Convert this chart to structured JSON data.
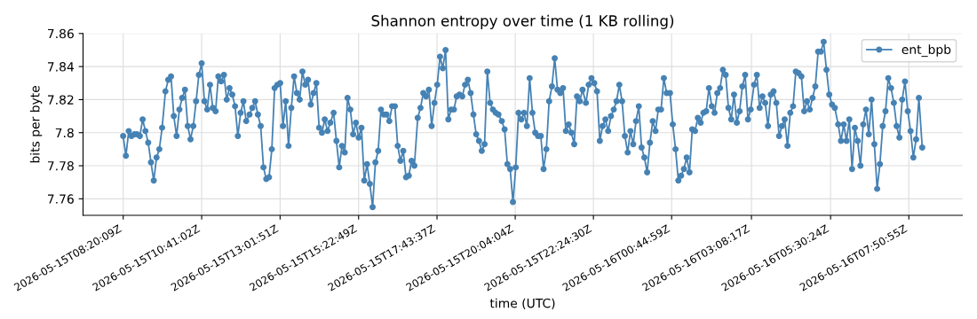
{
  "chart_data": {
    "type": "line",
    "title": "Shannon entropy over time (1 KB rolling)",
    "xlabel": "time (UTC)",
    "ylabel": "bits per byte",
    "x": [
      "2026-05-15T08:20",
      "2026-05-15T08:25",
      "2026-05-15T08:30",
      "2026-05-15T08:35",
      "2026-05-15T08:40",
      "2026-05-15T08:45",
      "2026-05-15T08:50",
      "2026-05-15T08:55",
      "2026-05-15T09:00",
      "2026-05-15T09:05",
      "2026-05-15T09:10",
      "2026-05-15T09:15",
      "2026-05-15T09:20",
      "2026-05-15T09:25",
      "2026-05-15T09:30",
      "2026-05-15T09:36",
      "2026-05-15T09:41",
      "2026-05-15T09:46",
      "2026-05-15T09:51",
      "2026-05-15T09:56",
      "2026-05-15T10:01",
      "2026-05-15T10:06",
      "2026-05-15T10:11",
      "2026-05-15T10:16",
      "2026-05-15T10:21",
      "2026-05-15T10:26",
      "2026-05-15T10:31",
      "2026-05-15T10:36",
      "2026-05-15T10:41",
      "2026-05-15T10:46",
      "2026-05-15T10:51",
      "2026-05-15T10:56",
      "2026-05-15T11:01",
      "2026-05-15T11:06",
      "2026-05-15T11:11",
      "2026-05-15T11:16",
      "2026-05-15T11:21",
      "2026-05-15T11:26",
      "2026-05-15T11:31",
      "2026-05-15T11:36",
      "2026-05-15T11:41",
      "2026-05-15T11:46",
      "2026-05-15T11:51",
      "2026-05-15T11:56",
      "2026-05-15T12:01",
      "2026-05-15T12:07",
      "2026-05-15T12:12",
      "2026-05-15T12:17",
      "2026-05-15T12:22",
      "2026-05-15T12:27",
      "2026-05-15T12:32",
      "2026-05-15T12:37",
      "2026-05-15T12:42",
      "2026-05-15T12:47",
      "2026-05-15T12:52",
      "2026-05-15T12:57",
      "2026-05-15T13:02",
      "2026-05-15T13:07",
      "2026-05-15T13:12",
      "2026-05-15T13:17",
      "2026-05-15T13:22",
      "2026-05-15T13:27",
      "2026-05-15T13:32",
      "2026-05-15T13:37",
      "2026-05-15T13:42",
      "2026-05-15T13:47",
      "2026-05-15T13:52",
      "2026-05-15T13:57",
      "2026-05-15T14:02",
      "2026-05-15T14:07",
      "2026-05-15T14:12",
      "2026-05-15T14:17",
      "2026-05-15T14:22",
      "2026-05-15T14:27",
      "2026-05-15T14:32",
      "2026-05-15T14:38",
      "2026-05-15T14:43",
      "2026-05-15T14:48",
      "2026-05-15T14:53",
      "2026-05-15T14:58",
      "2026-05-15T15:03",
      "2026-05-15T15:08",
      "2026-05-15T15:13",
      "2026-05-15T15:18",
      "2026-05-15T15:23",
      "2026-05-15T15:28",
      "2026-05-15T15:33",
      "2026-05-15T15:38",
      "2026-05-15T15:43",
      "2026-05-15T15:48",
      "2026-05-15T15:53",
      "2026-05-15T15:58",
      "2026-05-15T16:03",
      "2026-05-15T16:08",
      "2026-05-15T16:13",
      "2026-05-15T16:18",
      "2026-05-15T16:23",
      "2026-05-15T16:28",
      "2026-05-15T16:33",
      "2026-05-15T16:38",
      "2026-05-15T16:43",
      "2026-05-15T16:48",
      "2026-05-15T16:53",
      "2026-05-15T16:58",
      "2026-05-15T17:03",
      "2026-05-15T17:09",
      "2026-05-15T17:14",
      "2026-05-15T17:19",
      "2026-05-15T17:24",
      "2026-05-15T17:29",
      "2026-05-15T17:34",
      "2026-05-15T17:39",
      "2026-05-15T17:44",
      "2026-05-15T17:49",
      "2026-05-15T17:54",
      "2026-05-15T17:59",
      "2026-05-15T18:04",
      "2026-05-15T18:09",
      "2026-05-15T18:14",
      "2026-05-15T18:19",
      "2026-05-15T18:24",
      "2026-05-15T18:29",
      "2026-05-15T18:34",
      "2026-05-15T18:39",
      "2026-05-15T18:44",
      "2026-05-15T18:49",
      "2026-05-15T18:54",
      "2026-05-15T18:59",
      "2026-05-15T19:04",
      "2026-05-15T19:09",
      "2026-05-15T19:14",
      "2026-05-15T19:19",
      "2026-05-15T19:24",
      "2026-05-15T19:29",
      "2026-05-15T19:34",
      "2026-05-15T19:40",
      "2026-05-15T19:45",
      "2026-05-15T19:50",
      "2026-05-15T19:55",
      "2026-05-15T20:00",
      "2026-05-15T20:05",
      "2026-05-15T20:10",
      "2026-05-15T20:15",
      "2026-05-15T20:20",
      "2026-05-15T20:25",
      "2026-05-15T20:30",
      "2026-05-15T20:35",
      "2026-05-15T20:40",
      "2026-05-15T20:45",
      "2026-05-15T20:50",
      "2026-05-15T20:55",
      "2026-05-15T21:00",
      "2026-05-15T21:05",
      "2026-05-15T21:10",
      "2026-05-15T21:15",
      "2026-05-15T21:20",
      "2026-05-15T21:25",
      "2026-05-15T21:30",
      "2026-05-15T21:35",
      "2026-05-15T21:40",
      "2026-05-15T21:45",
      "2026-05-15T21:50",
      "2026-05-15T21:55",
      "2026-05-15T22:00",
      "2026-05-15T22:05",
      "2026-05-15T22:11",
      "2026-05-15T22:16",
      "2026-05-15T22:21",
      "2026-05-15T22:26",
      "2026-05-15T22:31",
      "2026-05-15T22:36",
      "2026-05-15T22:41",
      "2026-05-15T22:46",
      "2026-05-15T22:51",
      "2026-05-15T22:56",
      "2026-05-15T23:01",
      "2026-05-15T23:06",
      "2026-05-15T23:11",
      "2026-05-15T23:16",
      "2026-05-15T23:21",
      "2026-05-15T23:26",
      "2026-05-15T23:31",
      "2026-05-15T23:36",
      "2026-05-15T23:41",
      "2026-05-15T23:46",
      "2026-05-15T23:51",
      "2026-05-15T23:56",
      "2026-05-16T00:01",
      "2026-05-16T00:06",
      "2026-05-16T00:11",
      "2026-05-16T00:16",
      "2026-05-16T00:21",
      "2026-05-16T00:26",
      "2026-05-16T00:31",
      "2026-05-16T00:36",
      "2026-05-16T00:42",
      "2026-05-16T00:47",
      "2026-05-16T00:52",
      "2026-05-16T00:57",
      "2026-05-16T01:02",
      "2026-05-16T01:07",
      "2026-05-16T01:12",
      "2026-05-16T01:17",
      "2026-05-16T01:22",
      "2026-05-16T01:27",
      "2026-05-16T01:32",
      "2026-05-16T01:37",
      "2026-05-16T01:42",
      "2026-05-16T01:47",
      "2026-05-16T01:52",
      "2026-05-16T01:57",
      "2026-05-16T02:02",
      "2026-05-16T02:07",
      "2026-05-16T02:12",
      "2026-05-16T02:17",
      "2026-05-16T02:22",
      "2026-05-16T02:27",
      "2026-05-16T02:32",
      "2026-05-16T02:37",
      "2026-05-16T02:42",
      "2026-05-16T02:47",
      "2026-05-16T02:52",
      "2026-05-16T02:57",
      "2026-05-16T03:02",
      "2026-05-16T03:07",
      "2026-05-16T03:13",
      "2026-05-16T03:18",
      "2026-05-16T03:23",
      "2026-05-16T03:28",
      "2026-05-16T03:33",
      "2026-05-16T03:38",
      "2026-05-16T03:43",
      "2026-05-16T03:48",
      "2026-05-16T03:53",
      "2026-05-16T03:58",
      "2026-05-16T04:03",
      "2026-05-16T04:08",
      "2026-05-16T04:13",
      "2026-05-16T04:18",
      "2026-05-16T04:23",
      "2026-05-16T04:28",
      "2026-05-16T04:33",
      "2026-05-16T04:38",
      "2026-05-16T04:43",
      "2026-05-16T04:48",
      "2026-05-16T04:53",
      "2026-05-16T04:58",
      "2026-05-16T05:03",
      "2026-05-16T05:08",
      "2026-05-16T05:13",
      "2026-05-16T05:18",
      "2026-05-16T05:23",
      "2026-05-16T05:28",
      "2026-05-16T05:33",
      "2026-05-16T05:38",
      "2026-05-16T05:44",
      "2026-05-16T05:49",
      "2026-05-16T05:54",
      "2026-05-16T05:59",
      "2026-05-16T06:04",
      "2026-05-16T06:09",
      "2026-05-16T06:14",
      "2026-05-16T06:19",
      "2026-05-16T06:24",
      "2026-05-16T06:29",
      "2026-05-16T06:34",
      "2026-05-16T06:39",
      "2026-05-16T06:44",
      "2026-05-16T06:49",
      "2026-05-16T06:54",
      "2026-05-16T06:59",
      "2026-05-16T07:04",
      "2026-05-16T07:09",
      "2026-05-16T07:14",
      "2026-05-16T07:19",
      "2026-05-16T07:24",
      "2026-05-16T07:29",
      "2026-05-16T07:34",
      "2026-05-16T07:39",
      "2026-05-16T07:44",
      "2026-05-16T07:49",
      "2026-05-16T07:54",
      "2026-05-16T07:59",
      "2026-05-16T08:04",
      "2026-05-16T08:09",
      "2026-05-16T08:15"
    ],
    "series": [
      {
        "name": "ent_bpb",
        "color": "#4682b4",
        "values": [
          7.798,
          7.786,
          7.801,
          7.798,
          7.799,
          7.799,
          7.798,
          7.808,
          7.801,
          7.794,
          7.782,
          7.771,
          7.785,
          7.79,
          7.803,
          7.825,
          7.832,
          7.834,
          7.81,
          7.798,
          7.814,
          7.821,
          7.826,
          7.804,
          7.796,
          7.804,
          7.819,
          7.835,
          7.842,
          7.819,
          7.814,
          7.829,
          7.815,
          7.813,
          7.834,
          7.831,
          7.835,
          7.82,
          7.827,
          7.823,
          7.816,
          7.798,
          7.812,
          7.819,
          7.807,
          7.811,
          7.815,
          7.819,
          7.811,
          7.804,
          7.779,
          7.772,
          7.773,
          7.79,
          7.827,
          7.829,
          7.83,
          7.804,
          7.819,
          7.792,
          7.815,
          7.834,
          7.824,
          7.82,
          7.837,
          7.829,
          7.832,
          7.817,
          7.824,
          7.83,
          7.803,
          7.8,
          7.808,
          7.801,
          7.806,
          7.812,
          7.795,
          7.779,
          7.792,
          7.788,
          7.821,
          7.814,
          7.799,
          7.806,
          7.797,
          7.803,
          7.771,
          7.781,
          7.769,
          7.755,
          7.782,
          7.789,
          7.814,
          7.811,
          7.811,
          7.807,
          7.816,
          7.816,
          7.792,
          7.783,
          7.789,
          7.773,
          7.774,
          7.783,
          7.78,
          7.809,
          7.815,
          7.824,
          7.822,
          7.826,
          7.804,
          7.818,
          7.829,
          7.846,
          7.839,
          7.85,
          7.808,
          7.814,
          7.814,
          7.822,
          7.823,
          7.822,
          7.829,
          7.832,
          7.824,
          7.811,
          7.799,
          7.795,
          7.789,
          7.793,
          7.837,
          7.818,
          7.814,
          7.812,
          7.811,
          7.807,
          7.802,
          7.781,
          7.778,
          7.758,
          7.779,
          7.812,
          7.808,
          7.812,
          7.804,
          7.833,
          7.812,
          7.8,
          7.798,
          7.798,
          7.778,
          7.79,
          7.819,
          7.828,
          7.845,
          7.826,
          7.824,
          7.827,
          7.801,
          7.805,
          7.8,
          7.793,
          7.822,
          7.819,
          7.826,
          7.818,
          7.829,
          7.833,
          7.83,
          7.825,
          7.795,
          7.804,
          7.808,
          7.801,
          7.81,
          7.814,
          7.819,
          7.829,
          7.819,
          7.798,
          7.788,
          7.801,
          7.793,
          7.807,
          7.816,
          7.791,
          7.785,
          7.776,
          7.794,
          7.807,
          7.801,
          7.814,
          7.814,
          7.833,
          7.824,
          7.824,
          7.805,
          7.79,
          7.771,
          7.774,
          7.778,
          7.785,
          7.776,
          7.802,
          7.801,
          7.809,
          7.806,
          7.812,
          7.813,
          7.827,
          7.816,
          7.812,
          7.824,
          7.827,
          7.838,
          7.835,
          7.815,
          7.808,
          7.823,
          7.806,
          7.813,
          7.828,
          7.835,
          7.808,
          7.814,
          7.829,
          7.835,
          7.815,
          7.822,
          7.818,
          7.804,
          7.823,
          7.825,
          7.818,
          7.798,
          7.804,
          7.808,
          7.792,
          7.812,
          7.816,
          7.837,
          7.836,
          7.834,
          7.813,
          7.819,
          7.814,
          7.821,
          7.828,
          7.849,
          7.849,
          7.855,
          7.838,
          7.823,
          7.817,
          7.815,
          7.805,
          7.795,
          7.805,
          7.795,
          7.808,
          7.778,
          7.803,
          7.795,
          7.78,
          7.805,
          7.814,
          7.799,
          7.82,
          7.793,
          7.766,
          7.781,
          7.804,
          7.813,
          7.833,
          7.827,
          7.818,
          7.804,
          7.797,
          7.82,
          7.831,
          7.813,
          7.801,
          7.785,
          7.796,
          7.821,
          7.791
        ]
      }
    ],
    "xlim": [
      "2026-05-15T07:08",
      "2026-05-16T09:27"
    ],
    "xticks": [
      {
        "value": "2026-05-15T08:20:09",
        "label": "2026-05-15T08:20:09Z"
      },
      {
        "value": "2026-05-15T10:41:02",
        "label": "2026-05-15T10:41:02Z"
      },
      {
        "value": "2026-05-15T13:01:51",
        "label": "2026-05-15T13:01:51Z"
      },
      {
        "value": "2026-05-15T15:22:49",
        "label": "2026-05-15T15:22:49Z"
      },
      {
        "value": "2026-05-15T17:43:37",
        "label": "2026-05-15T17:43:37Z"
      },
      {
        "value": "2026-05-15T20:04:04",
        "label": "2026-05-15T20:04:04Z"
      },
      {
        "value": "2026-05-15T22:24:30",
        "label": "2026-05-15T22:24:30Z"
      },
      {
        "value": "2026-05-16T00:44:59",
        "label": "2026-05-16T00:44:59Z"
      },
      {
        "value": "2026-05-16T03:08:17",
        "label": "2026-05-16T03:08:17Z"
      },
      {
        "value": "2026-05-16T05:30:24",
        "label": "2026-05-16T05:30:24Z"
      },
      {
        "value": "2026-05-16T07:50:55",
        "label": "2026-05-16T07:50:55Z"
      }
    ],
    "ylim": [
      7.75,
      7.86
    ],
    "yticks": [
      7.76,
      7.78,
      7.8,
      7.82,
      7.84,
      7.86
    ],
    "grid": true,
    "legend": "top right",
    "marker": "circle",
    "line_style": "solid"
  }
}
